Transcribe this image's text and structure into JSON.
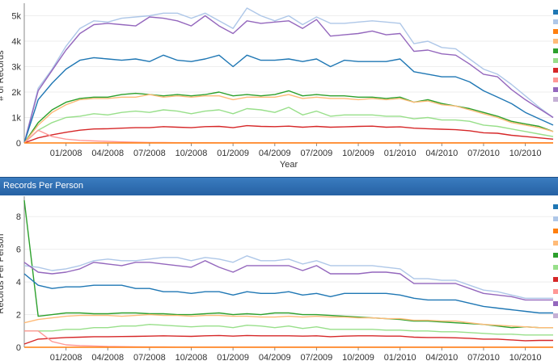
{
  "section_title": "Records Per Person",
  "chart_data": [
    {
      "type": "line",
      "title": "",
      "xlabel": "Year",
      "ylabel": "# of Records",
      "x": [
        "2007-10",
        "2007-11",
        "2007-12",
        "2008-01",
        "2008-02",
        "2008-03",
        "2008-04",
        "2008-05",
        "2008-06",
        "2008-07",
        "2008-08",
        "2008-09",
        "2008-10",
        "2008-11",
        "2008-12",
        "2009-01",
        "2009-02",
        "2009-03",
        "2009-04",
        "2009-05",
        "2009-06",
        "2009-07",
        "2009-08",
        "2009-09",
        "2009-10",
        "2009-11",
        "2009-12",
        "2010-01",
        "2010-02",
        "2010-03",
        "2010-04",
        "2010-05",
        "2010-06",
        "2010-07",
        "2010-08",
        "2010-09",
        "2010-10",
        "2010-11",
        "2010-12"
      ],
      "xticks": [
        "01/2008",
        "04/2008",
        "07/2008",
        "10/2008",
        "01/2009",
        "04/2009",
        "07/2009",
        "10/2009",
        "01/2010",
        "04/2010",
        "07/2010",
        "10/2010"
      ],
      "xtick_positions": [
        "2008-01",
        "2008-04",
        "2008-07",
        "2008-10",
        "2009-01",
        "2009-04",
        "2009-07",
        "2009-10",
        "2010-01",
        "2010-04",
        "2010-07",
        "2010-10"
      ],
      "yticks": [
        "0",
        "1k",
        "2k",
        "3k",
        "4k",
        "5k"
      ],
      "ylim": [
        0,
        5300
      ],
      "series": [
        {
          "color": "#aec7e8",
          "values": [
            0,
            2150,
            2900,
            3800,
            4500,
            4800,
            4750,
            4900,
            4950,
            5000,
            5100,
            5100,
            4900,
            5100,
            4800,
            4500,
            5300,
            5000,
            4800,
            5000,
            4650,
            4950,
            4700,
            4700,
            4750,
            4800,
            4750,
            4700,
            3900,
            4000,
            3750,
            3700,
            3300,
            2900,
            2700,
            2300,
            1850,
            1400,
            1000
          ]
        },
        {
          "color": "#9467bd",
          "values": [
            0,
            2050,
            2850,
            3650,
            4300,
            4650,
            4700,
            4650,
            4600,
            4950,
            4900,
            4800,
            4600,
            5000,
            4600,
            4300,
            4800,
            4700,
            4750,
            4800,
            4500,
            4850,
            4200,
            4250,
            4300,
            4400,
            4250,
            4300,
            3600,
            3650,
            3500,
            3450,
            3100,
            2700,
            2600,
            2100,
            1700,
            1350,
            1000
          ]
        },
        {
          "color": "#1f77b4",
          "values": [
            0,
            1700,
            2350,
            2900,
            3250,
            3350,
            3300,
            3250,
            3300,
            3200,
            3450,
            3250,
            3200,
            3300,
            3450,
            3000,
            3450,
            3250,
            3250,
            3300,
            3200,
            3300,
            3000,
            3250,
            3200,
            3200,
            3200,
            3300,
            2800,
            2700,
            2600,
            2600,
            2400,
            2050,
            1800,
            1550,
            1200,
            950,
            700
          ]
        },
        {
          "color": "#2ca02c",
          "values": [
            0,
            800,
            1300,
            1600,
            1750,
            1800,
            1800,
            1900,
            1950,
            1900,
            1850,
            1900,
            1850,
            1900,
            2000,
            1850,
            1900,
            1850,
            1900,
            2050,
            1850,
            1900,
            1850,
            1850,
            1800,
            1800,
            1750,
            1800,
            1600,
            1700,
            1550,
            1450,
            1350,
            1200,
            1050,
            850,
            750,
            650,
            450
          ]
        },
        {
          "color": "#ffbb78",
          "values": [
            0,
            700,
            1200,
            1500,
            1700,
            1750,
            1750,
            1800,
            1800,
            1900,
            1800,
            1850,
            1800,
            1850,
            1850,
            1700,
            1800,
            1800,
            1800,
            1900,
            1750,
            1800,
            1750,
            1750,
            1700,
            1750,
            1700,
            1750,
            1600,
            1650,
            1500,
            1450,
            1300,
            1150,
            1000,
            800,
            700,
            600,
            450
          ]
        },
        {
          "color": "#98df8a",
          "values": [
            0,
            500,
            800,
            1000,
            1050,
            1150,
            1100,
            1200,
            1250,
            1200,
            1300,
            1250,
            1150,
            1250,
            1300,
            1150,
            1350,
            1300,
            1200,
            1400,
            1100,
            1250,
            1050,
            1100,
            1100,
            1100,
            1050,
            1050,
            950,
            1000,
            900,
            900,
            850,
            700,
            650,
            550,
            450,
            350,
            250
          ]
        },
        {
          "color": "#d62728",
          "values": [
            0,
            200,
            320,
            420,
            500,
            550,
            560,
            580,
            600,
            600,
            640,
            620,
            600,
            640,
            650,
            600,
            680,
            650,
            640,
            660,
            620,
            650,
            620,
            630,
            650,
            660,
            620,
            630,
            580,
            560,
            540,
            520,
            480,
            400,
            380,
            300,
            250,
            200,
            150
          ]
        },
        {
          "color": "#ff9896",
          "values": [
            0,
            500,
            250,
            150,
            100,
            80,
            60,
            40,
            30,
            20,
            15,
            10,
            10,
            10,
            5,
            5,
            5,
            5,
            5,
            5,
            5,
            5,
            5,
            5,
            5,
            5,
            5,
            5,
            5,
            5,
            5,
            5,
            5,
            5,
            5,
            5,
            5,
            5,
            5
          ]
        },
        {
          "color": "#ff7f0e",
          "values": [
            0,
            0,
            0,
            0,
            0,
            0,
            0,
            0,
            0,
            0,
            0,
            0,
            0,
            0,
            0,
            0,
            0,
            0,
            0,
            0,
            0,
            0,
            0,
            0,
            0,
            0,
            0,
            0,
            0,
            0,
            0,
            0,
            0,
            0,
            0,
            0,
            0,
            0,
            0
          ]
        }
      ]
    },
    {
      "type": "line",
      "title": "",
      "xlabel": "",
      "ylabel": "Records Per Person",
      "x": [
        "2007-10",
        "2007-11",
        "2007-12",
        "2008-01",
        "2008-02",
        "2008-03",
        "2008-04",
        "2008-05",
        "2008-06",
        "2008-07",
        "2008-08",
        "2008-09",
        "2008-10",
        "2008-11",
        "2008-12",
        "2009-01",
        "2009-02",
        "2009-03",
        "2009-04",
        "2009-05",
        "2009-06",
        "2009-07",
        "2009-08",
        "2009-09",
        "2009-10",
        "2009-11",
        "2009-12",
        "2010-01",
        "2010-02",
        "2010-03",
        "2010-04",
        "2010-05",
        "2010-06",
        "2010-07",
        "2010-08",
        "2010-09",
        "2010-10",
        "2010-11",
        "2010-12"
      ],
      "xticks": [
        "01/2008",
        "04/2008",
        "07/2008",
        "10/2008",
        "01/2009",
        "04/2009",
        "07/2009",
        "10/2009",
        "01/2010",
        "04/2010",
        "07/2010",
        "10/2010"
      ],
      "xtick_positions": [
        "2008-01",
        "2008-04",
        "2008-07",
        "2008-10",
        "2009-01",
        "2009-04",
        "2009-07",
        "2009-10",
        "2010-01",
        "2010-04",
        "2010-07",
        "2010-10"
      ],
      "yticks": [
        "0",
        "2",
        "4",
        "6",
        "8"
      ],
      "ylim": [
        0,
        9
      ],
      "series": [
        {
          "color": "#2ca02c",
          "values": [
            9.0,
            1.9,
            2.0,
            2.1,
            2.1,
            2.05,
            2.05,
            2.1,
            2.1,
            2.05,
            2.05,
            2.0,
            2.0,
            2.05,
            2.1,
            2.0,
            2.05,
            2.0,
            2.1,
            2.1,
            2.0,
            2.0,
            1.95,
            1.9,
            1.85,
            1.8,
            1.75,
            1.7,
            1.6,
            1.6,
            1.55,
            1.5,
            1.45,
            1.4,
            1.3,
            1.2,
            1.25,
            1.2,
            1.2
          ]
        },
        {
          "color": "#aec7e8",
          "values": [
            5.0,
            4.9,
            4.7,
            4.8,
            5.0,
            5.3,
            5.4,
            5.3,
            5.3,
            5.4,
            5.5,
            5.5,
            5.3,
            5.5,
            5.4,
            5.2,
            5.6,
            5.3,
            5.3,
            5.4,
            5.1,
            5.3,
            5.0,
            5.0,
            5.0,
            5.0,
            4.9,
            4.8,
            4.2,
            4.2,
            4.1,
            4.1,
            3.8,
            3.5,
            3.4,
            3.2,
            3.0,
            3.0,
            3.0
          ]
        },
        {
          "color": "#9467bd",
          "values": [
            5.2,
            4.6,
            4.5,
            4.6,
            4.8,
            5.2,
            5.1,
            5.0,
            5.2,
            5.2,
            5.1,
            5.0,
            4.9,
            5.3,
            4.9,
            4.6,
            5.0,
            5.0,
            5.0,
            5.0,
            4.7,
            5.0,
            4.5,
            4.5,
            4.5,
            4.6,
            4.6,
            4.5,
            3.9,
            3.9,
            3.9,
            3.9,
            3.6,
            3.3,
            3.2,
            3.1,
            2.9,
            2.9,
            2.9
          ]
        },
        {
          "color": "#1f77b4",
          "values": [
            4.5,
            3.8,
            3.6,
            3.7,
            3.7,
            3.8,
            3.8,
            3.8,
            3.6,
            3.6,
            3.4,
            3.4,
            3.3,
            3.4,
            3.4,
            3.2,
            3.4,
            3.3,
            3.3,
            3.4,
            3.2,
            3.3,
            3.1,
            3.3,
            3.3,
            3.3,
            3.3,
            3.2,
            3.0,
            2.9,
            2.9,
            2.9,
            2.7,
            2.5,
            2.4,
            2.3,
            2.2,
            2.1,
            2.1
          ]
        },
        {
          "color": "#ffbb78",
          "values": [
            1.5,
            1.7,
            1.8,
            1.9,
            1.95,
            1.95,
            1.95,
            1.9,
            1.95,
            2.0,
            1.95,
            1.95,
            1.9,
            1.95,
            1.95,
            1.9,
            1.9,
            1.85,
            1.85,
            1.9,
            1.85,
            1.9,
            1.85,
            1.85,
            1.8,
            1.8,
            1.75,
            1.75,
            1.65,
            1.65,
            1.6,
            1.6,
            1.5,
            1.4,
            1.35,
            1.3,
            1.25,
            1.2,
            1.2
          ]
        },
        {
          "color": "#98df8a",
          "values": [
            1.0,
            1.0,
            1.0,
            1.1,
            1.1,
            1.2,
            1.2,
            1.3,
            1.3,
            1.4,
            1.35,
            1.3,
            1.25,
            1.3,
            1.3,
            1.2,
            1.35,
            1.3,
            1.2,
            1.3,
            1.15,
            1.25,
            1.1,
            1.1,
            1.1,
            1.1,
            1.05,
            1.05,
            1.0,
            1.0,
            0.95,
            0.95,
            0.9,
            0.85,
            0.8,
            0.8,
            0.75,
            0.75,
            0.75
          ]
        },
        {
          "color": "#d62728",
          "values": [
            0.2,
            0.5,
            0.55,
            0.6,
            0.62,
            0.65,
            0.65,
            0.66,
            0.67,
            0.68,
            0.7,
            0.68,
            0.67,
            0.7,
            0.72,
            0.68,
            0.72,
            0.7,
            0.7,
            0.7,
            0.68,
            0.7,
            0.65,
            0.68,
            0.7,
            0.7,
            0.68,
            0.68,
            0.62,
            0.6,
            0.6,
            0.58,
            0.55,
            0.5,
            0.5,
            0.45,
            0.4,
            0.42,
            0.42
          ]
        },
        {
          "color": "#ff9896",
          "values": [
            1.0,
            1.0,
            0.35,
            0.15,
            0.1,
            0.08,
            0.05,
            0.04,
            0.03,
            0.02,
            0.02,
            0.01,
            0.01,
            0.01,
            0.01,
            0.01,
            0.01,
            0.01,
            0.01,
            0.01,
            0.01,
            0.01,
            0.01,
            0.01,
            0.01,
            0.01,
            0.01,
            0.01,
            0.01,
            0.01,
            0.01,
            0.01,
            0.01,
            0.01,
            0.01,
            0.01,
            0.01,
            0.01,
            0.01
          ]
        },
        {
          "color": "#ff7f0e",
          "values": [
            0,
            0,
            0,
            0,
            0,
            0,
            0,
            0,
            0,
            0,
            0,
            0,
            0,
            0,
            0,
            0,
            0,
            0,
            0,
            0,
            0,
            0,
            0,
            0,
            0,
            0,
            0,
            0,
            0,
            0,
            0,
            0,
            0,
            0,
            0,
            0,
            0,
            0,
            0
          ]
        }
      ]
    }
  ],
  "legend_colors": [
    "#1f77b4",
    "#aec7e8",
    "#ff7f0e",
    "#ffbb78",
    "#2ca02c",
    "#98df8a",
    "#d62728",
    "#ff9896",
    "#9467bd",
    "#c5b0d5"
  ]
}
